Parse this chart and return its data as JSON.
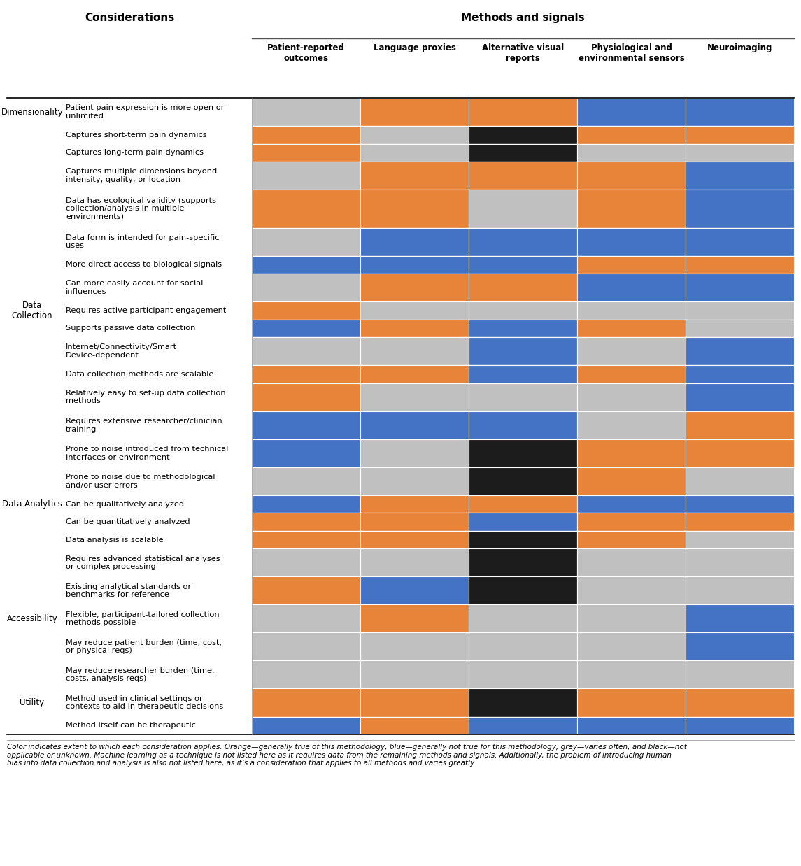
{
  "title_left": "Considerations",
  "title_right": "Methods and signals",
  "col_headers": [
    "Patient-reported\noutcomes",
    "Language proxies",
    "Alternative visual\nreports",
    "Physiological and\nenvironmental sensors",
    "Neuroimaging"
  ],
  "rows": [
    {
      "category": "Dimensionality",
      "label": "Patient pain expression is more open or\nunlimited",
      "colors": [
        "grey",
        "orange",
        "orange",
        "blue",
        "blue"
      ],
      "nlines": 2
    },
    {
      "category": "",
      "label": "Captures short-term pain dynamics",
      "colors": [
        "orange",
        "grey",
        "black",
        "orange",
        "orange"
      ],
      "nlines": 1
    },
    {
      "category": "",
      "label": "Captures long-term pain dynamics",
      "colors": [
        "orange",
        "grey",
        "black",
        "grey",
        "grey"
      ],
      "nlines": 1
    },
    {
      "category": "",
      "label": "Captures multiple dimensions beyond\nintensity, quality, or location",
      "colors": [
        "grey",
        "orange",
        "orange",
        "orange",
        "blue"
      ],
      "nlines": 2
    },
    {
      "category": "",
      "label": "Data has ecological validity (supports\ncollection/analysis in multiple\nenvironments)",
      "colors": [
        "orange",
        "orange",
        "grey",
        "orange",
        "blue"
      ],
      "nlines": 3
    },
    {
      "category": "",
      "label": "Data form is intended for pain-specific\nuses",
      "colors": [
        "grey",
        "blue",
        "blue",
        "blue",
        "blue"
      ],
      "nlines": 2
    },
    {
      "category": "",
      "label": "More direct access to biological signals",
      "colors": [
        "blue",
        "blue",
        "blue",
        "orange",
        "orange"
      ],
      "nlines": 1
    },
    {
      "category": "",
      "label": "Can more easily account for social\ninfluences",
      "colors": [
        "grey",
        "orange",
        "orange",
        "blue",
        "blue"
      ],
      "nlines": 2
    },
    {
      "category": "Data\nCollection",
      "label": "Requires active participant engagement",
      "colors": [
        "orange",
        "grey",
        "grey",
        "grey",
        "grey"
      ],
      "nlines": 1
    },
    {
      "category": "",
      "label": "Supports passive data collection",
      "colors": [
        "blue",
        "orange",
        "blue",
        "orange",
        "grey"
      ],
      "nlines": 1
    },
    {
      "category": "",
      "label": "Internet/Connectivity/Smart\nDevice-dependent",
      "colors": [
        "grey",
        "grey",
        "blue",
        "grey",
        "blue"
      ],
      "nlines": 2
    },
    {
      "category": "",
      "label": "Data collection methods are scalable",
      "colors": [
        "orange",
        "orange",
        "blue",
        "orange",
        "blue"
      ],
      "nlines": 1
    },
    {
      "category": "",
      "label": "Relatively easy to set-up data collection\nmethods",
      "colors": [
        "orange",
        "grey",
        "grey",
        "grey",
        "blue"
      ],
      "nlines": 2
    },
    {
      "category": "",
      "label": "Requires extensive researcher/clinician\ntraining",
      "colors": [
        "blue",
        "blue",
        "blue",
        "grey",
        "orange"
      ],
      "nlines": 2
    },
    {
      "category": "",
      "label": "Prone to noise introduced from technical\ninterfaces or environment",
      "colors": [
        "blue",
        "grey",
        "black",
        "orange",
        "orange"
      ],
      "nlines": 2
    },
    {
      "category": "",
      "label": "Prone to noise due to methodological\nand/or user errors",
      "colors": [
        "grey",
        "grey",
        "black",
        "orange",
        "grey"
      ],
      "nlines": 2
    },
    {
      "category": "Data Analytics",
      "label": "Can be qualitatively analyzed",
      "colors": [
        "blue",
        "orange",
        "orange",
        "blue",
        "blue"
      ],
      "nlines": 1
    },
    {
      "category": "",
      "label": "Can be quantitatively analyzed",
      "colors": [
        "orange",
        "orange",
        "blue",
        "orange",
        "orange"
      ],
      "nlines": 1
    },
    {
      "category": "",
      "label": "Data analysis is scalable",
      "colors": [
        "orange",
        "orange",
        "black",
        "orange",
        "grey"
      ],
      "nlines": 1
    },
    {
      "category": "",
      "label": "Requires advanced statistical analyses\nor complex processing",
      "colors": [
        "grey",
        "grey",
        "black",
        "grey",
        "grey"
      ],
      "nlines": 2
    },
    {
      "category": "",
      "label": "Existing analytical standards or\nbenchmarks for reference",
      "colors": [
        "orange",
        "blue",
        "black",
        "grey",
        "grey"
      ],
      "nlines": 2
    },
    {
      "category": "Accessibility",
      "label": "Flexible, participant-tailored collection\nmethods possible",
      "colors": [
        "grey",
        "orange",
        "grey",
        "grey",
        "blue"
      ],
      "nlines": 2
    },
    {
      "category": "",
      "label": "May reduce patient burden (time, cost,\nor physical reqs)",
      "colors": [
        "grey",
        "grey",
        "grey",
        "grey",
        "blue"
      ],
      "nlines": 2
    },
    {
      "category": "",
      "label": "May reduce researcher burden (time,\ncosts, analysis reqs)",
      "colors": [
        "grey",
        "grey",
        "grey",
        "grey",
        "grey"
      ],
      "nlines": 2
    },
    {
      "category": "Utility",
      "label": "Method used in clinical settings or\ncontexts to aid in therapeutic decisions",
      "colors": [
        "orange",
        "orange",
        "black",
        "orange",
        "orange"
      ],
      "nlines": 2
    },
    {
      "category": "",
      "label": "Method itself can be therapeutic",
      "colors": [
        "blue",
        "orange",
        "blue",
        "blue",
        "blue"
      ],
      "nlines": 1
    }
  ],
  "color_map": {
    "orange": "#E8833A",
    "blue": "#4472C4",
    "grey": "#C0C0C0",
    "black": "#1C1C1C"
  },
  "footnote": "Color indicates extent to which each consideration applies. Orange—generally true of this methodology; blue—generally not true for this methodology; grey—varies often; and black—not\napplicable or unknown. Machine learning as a technique is not listed here as it requires data from the remaining methods and signals. Additionally, the problem of introducing human\nbias into data collection and analysis is also not listed here, as it’s a consideration that applies to all methods and varies greatly."
}
